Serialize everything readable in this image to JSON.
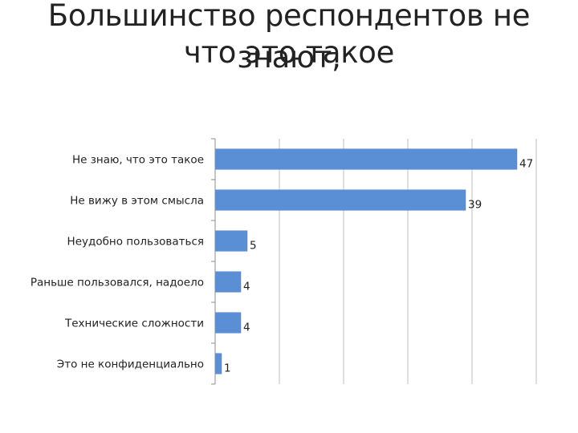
{
  "title": {
    "line1": "Большинство респондентов не знают,",
    "line2": "что это такое"
  },
  "chart_data": {
    "type": "bar",
    "orientation": "horizontal",
    "categories": [
      "Не знаю, что это такое",
      "Не вижу в этом смысла",
      "Неудобно пользоваться",
      "Раньше пользовался, надоело",
      "Технические сложности",
      "Это не конфиденциально"
    ],
    "values": [
      47,
      39,
      5,
      4,
      4,
      1
    ],
    "xlim": [
      0,
      50
    ],
    "grid": true,
    "legend": "none",
    "bar_color": "#5a8fd6",
    "grid_color": "#bfbfbf",
    "axis_color": "#8c8c8c"
  }
}
